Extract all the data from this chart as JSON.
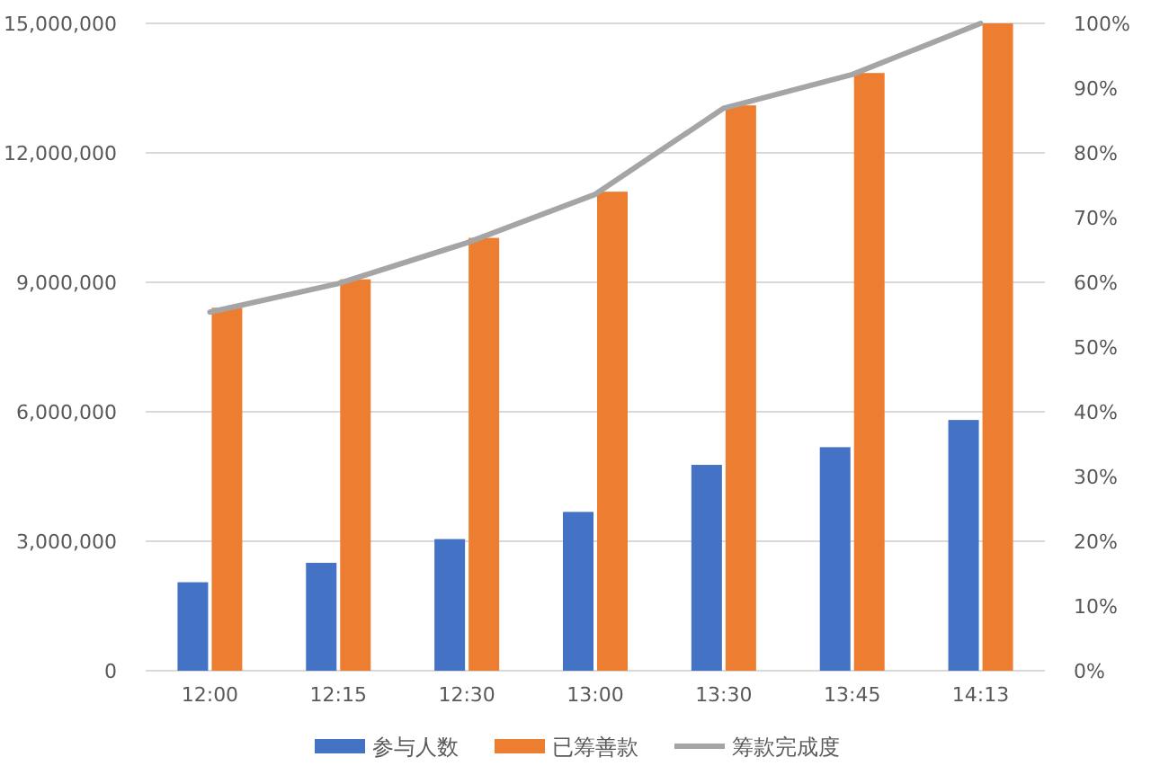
{
  "chart_data": {
    "type": "bar",
    "categories": [
      "12:00",
      "12:15",
      "12:30",
      "13:00",
      "13:30",
      "13:45",
      "14:13"
    ],
    "series": [
      {
        "name": "参与人数",
        "color": "#4472c4",
        "values": [
          2050000,
          2500000,
          3050000,
          3680000,
          4770000,
          5180000,
          5810000
        ]
      },
      {
        "name": "已筹善款",
        "color": "#ed7d31",
        "values": [
          8410000,
          9070000,
          10030000,
          11100000,
          13100000,
          13850000,
          15000000
        ]
      },
      {
        "name": "筹款完成度",
        "color": "#a5a5a5",
        "type": "line",
        "axis": "y2",
        "values": [
          55.4,
          59.8,
          66.1,
          73.6,
          86.9,
          92.1,
          100
        ]
      }
    ],
    "ylim": [
      0,
      15000000
    ],
    "yticks": [
      {
        "value": 0,
        "label": "0"
      },
      {
        "value": 3000000,
        "label": "3,000,000"
      },
      {
        "value": 6000000,
        "label": "6,000,000"
      },
      {
        "value": 9000000,
        "label": "9,000,000"
      },
      {
        "value": 12000000,
        "label": "12,000,000"
      },
      {
        "value": 15000000,
        "label": "15,000,000"
      }
    ],
    "y2lim": [
      0,
      100
    ],
    "y2ticks": [
      {
        "value": 0,
        "label": "0%"
      },
      {
        "value": 10,
        "label": "10%"
      },
      {
        "value": 20,
        "label": "20%"
      },
      {
        "value": 30,
        "label": "30%"
      },
      {
        "value": 40,
        "label": "40%"
      },
      {
        "value": 50,
        "label": "50%"
      },
      {
        "value": 60,
        "label": "60%"
      },
      {
        "value": 70,
        "label": "70%"
      },
      {
        "value": 80,
        "label": "80%"
      },
      {
        "value": 90,
        "label": "90%"
      },
      {
        "value": 100,
        "label": "100%"
      }
    ],
    "grid": "y",
    "legend": "bottom",
    "marker": "none",
    "line_style": "solid"
  }
}
